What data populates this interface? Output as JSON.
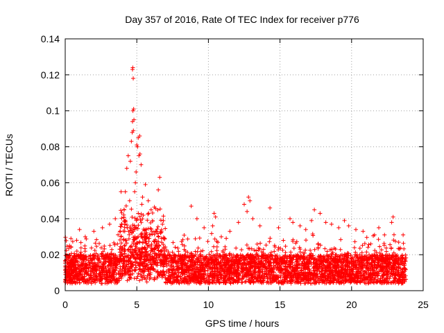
{
  "chart_data": {
    "type": "scatter",
    "title": "Day 357 of 2016, Rate Of TEC Index for receiver p776",
    "xlabel": "GPS time / hours",
    "ylabel": "ROTI / TECUs",
    "xlim": [
      0,
      25
    ],
    "ylim": [
      0,
      0.14
    ],
    "x_ticks": [
      0,
      5,
      10,
      15,
      20,
      25
    ],
    "x_tick_labels": [
      "0",
      "5",
      "10",
      "15",
      "20",
      "25"
    ],
    "y_ticks": [
      0,
      0.02,
      0.04,
      0.06,
      0.08,
      0.1,
      0.12,
      0.14
    ],
    "y_tick_labels": [
      "0",
      "0.02",
      "0.04",
      "0.06",
      "0.08",
      "0.1",
      "0.12",
      "0.14"
    ],
    "grid": true,
    "marker": "+",
    "colors": {
      "series": "#ff0000",
      "axes": "#000000",
      "grid": "#a0a0a0"
    },
    "series": [
      {
        "name": "ROTI",
        "x": [
          4.7,
          4.72,
          4.75,
          4.73,
          4.78,
          4.8,
          4.7,
          4.68,
          4.76,
          4.62,
          5.1,
          5.2,
          5.05,
          5.0,
          5.15,
          5.22,
          5.3,
          4.4,
          4.55,
          4.3,
          3.9,
          6.6,
          6.5,
          5.6,
          5.8,
          6.0,
          4.9,
          4.85,
          4.95,
          5.4,
          5.35,
          5.45,
          4.2,
          4.5,
          3.1,
          3.5,
          2.6,
          2.0,
          1.0,
          1.4,
          0.8,
          0.4,
          0.3,
          8.8,
          9.2,
          9.7,
          10.4,
          10.5,
          10.3,
          10.9,
          11.5,
          12.1,
          12.5,
          12.8,
          12.9,
          12.7,
          13.1,
          13.6,
          14.3,
          14.9,
          15.7,
          15.9,
          16.4,
          16.8,
          17.4,
          17.2,
          17.8,
          18.2,
          18.6,
          19.1,
          19.5,
          19.8,
          20.3,
          20.8,
          21.6,
          21.9,
          22.3,
          22.8,
          22.9,
          23.6
        ]
      }
    ],
    "note_x": "hours; y values carried in series.y",
    "series_y": [
      0.123,
      0.124,
      0.118,
      0.1,
      0.101,
      0.095,
      0.094,
      0.088,
      0.089,
      0.083,
      0.085,
      0.086,
      0.08,
      0.081,
      0.075,
      0.076,
      0.07,
      0.075,
      0.072,
      0.068,
      0.055,
      0.063,
      0.056,
      0.059,
      0.05,
      0.045,
      0.06,
      0.055,
      0.066,
      0.052,
      0.048,
      0.042,
      0.055,
      0.05,
      0.037,
      0.04,
      0.035,
      0.033,
      0.034,
      0.03,
      0.028,
      0.029,
      0.025,
      0.047,
      0.04,
      0.035,
      0.043,
      0.041,
      0.036,
      0.03,
      0.033,
      0.038,
      0.048,
      0.052,
      0.05,
      0.044,
      0.04,
      0.036,
      0.046,
      0.035,
      0.04,
      0.038,
      0.036,
      0.034,
      0.045,
      0.039,
      0.043,
      0.038,
      0.037,
      0.035,
      0.039,
      0.036,
      0.034,
      0.033,
      0.031,
      0.035,
      0.031,
      0.038,
      0.041,
      0.031
    ]
  }
}
